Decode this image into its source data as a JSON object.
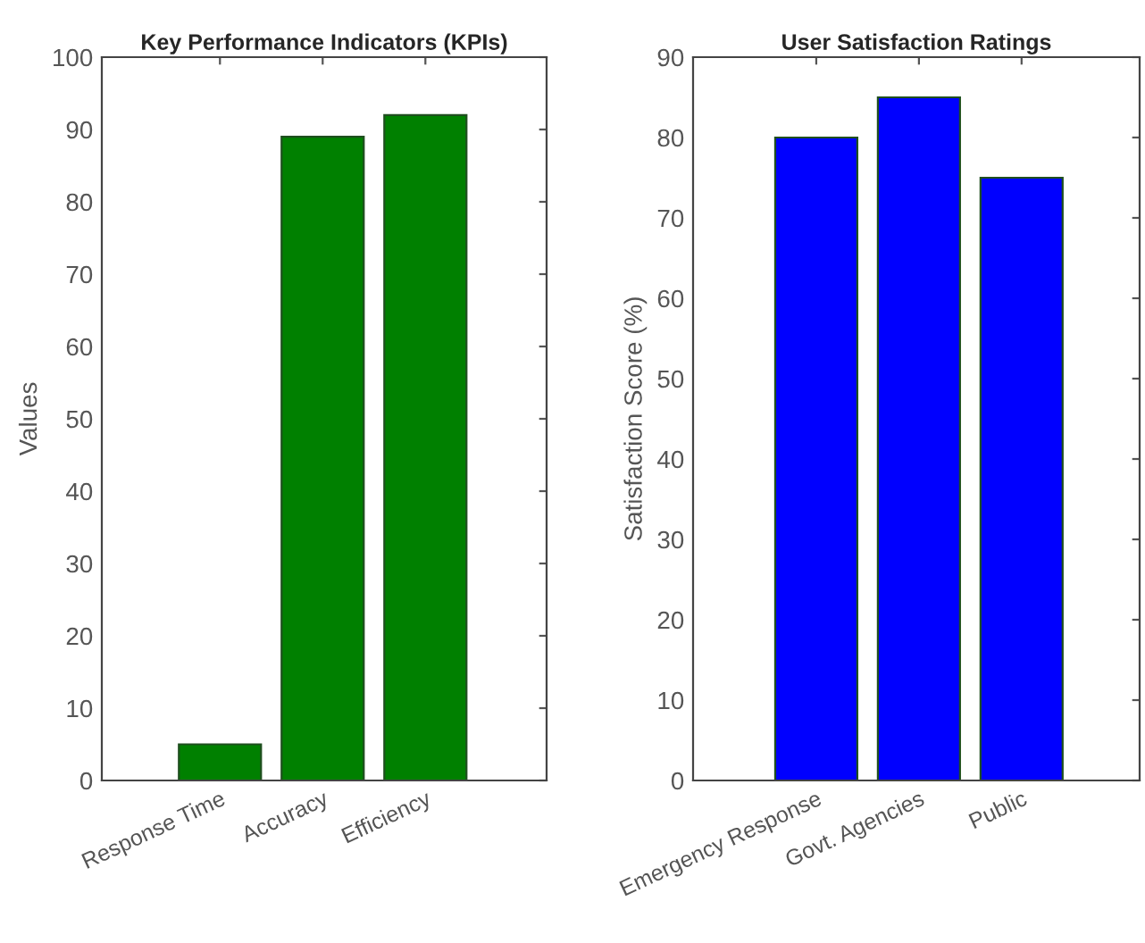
{
  "chart_data": [
    {
      "type": "bar",
      "title": "Key Performance Indicators (KPIs)",
      "ylabel": "Values",
      "categories": [
        "Response Time",
        "Accuracy",
        "Efficiency"
      ],
      "values": [
        5,
        89,
        92
      ],
      "color": "#008000",
      "ylim": [
        0,
        100
      ],
      "yticks": [
        0,
        10,
        20,
        30,
        40,
        50,
        60,
        70,
        80,
        90,
        100
      ],
      "grid": false
    },
    {
      "type": "bar",
      "title": "User Satisfaction Ratings",
      "ylabel": "Satisfaction Score (%)",
      "categories": [
        "Emergency Response",
        "Govt. Agencies",
        "Public"
      ],
      "values": [
        80,
        85,
        75
      ],
      "color": "#0000ff",
      "ylim": [
        0,
        90
      ],
      "yticks": [
        0,
        10,
        20,
        30,
        40,
        50,
        60,
        70,
        80,
        90
      ],
      "grid": false
    }
  ]
}
